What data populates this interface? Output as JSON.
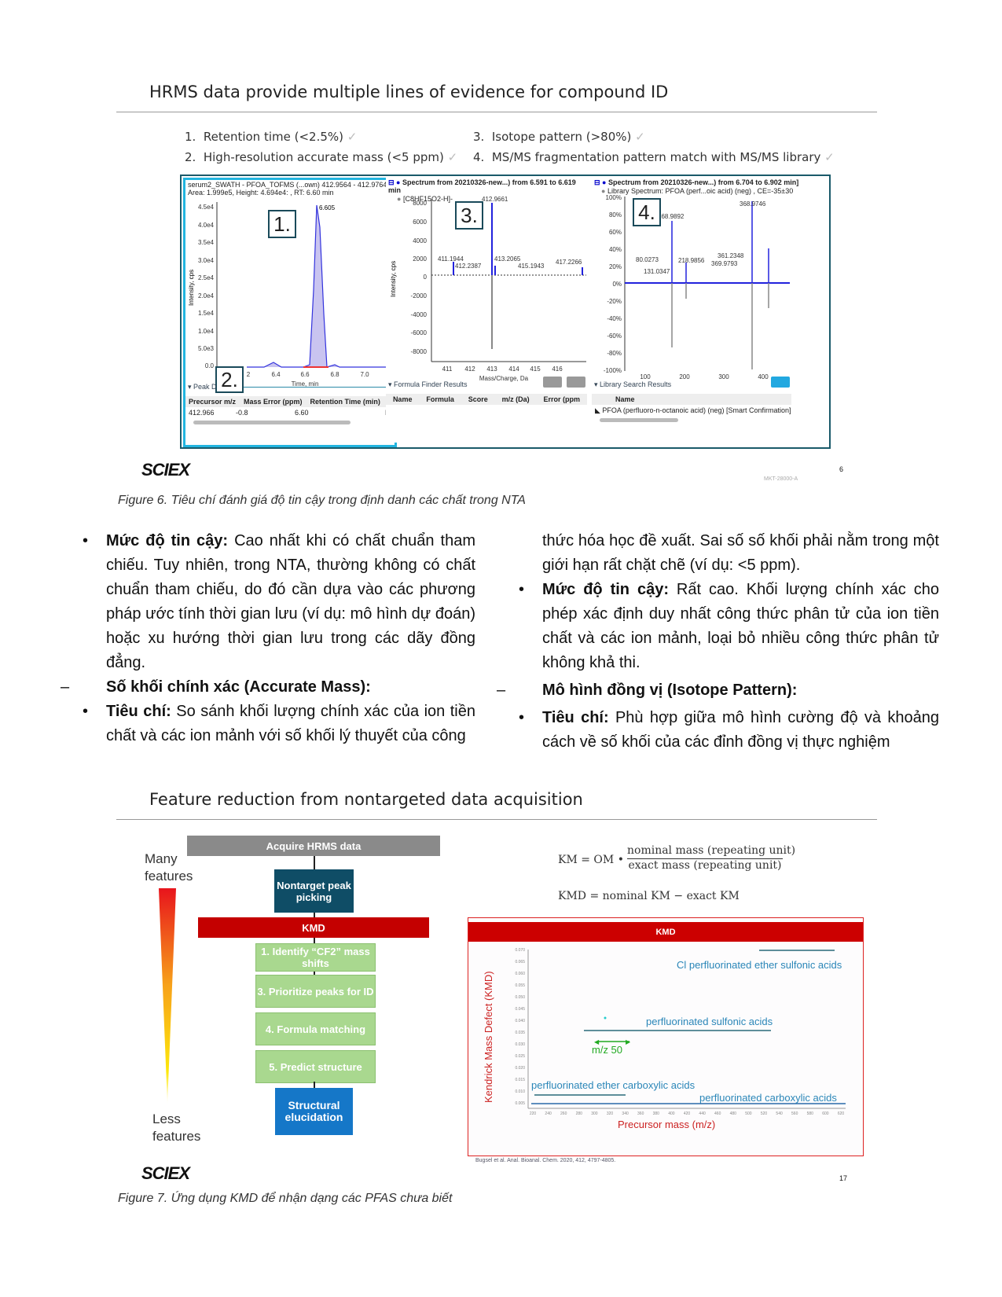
{
  "figure6": {
    "title": "HRMS data provide multiple lines of evidence for compound ID",
    "criteria": [
      {
        "num": "1.",
        "text": "Retention time (<2.5%)"
      },
      {
        "num": "2.",
        "text": "High-resolution accurate mass (<5 ppm)"
      },
      {
        "num": "3.",
        "text": "Isotope pattern (>80%)"
      },
      {
        "num": "4.",
        "text": "MS/MS fragmentation pattern match with MS/MS library"
      }
    ],
    "check": "✓",
    "panel1": {
      "header1": "serum2_SWATH - PFOA_TOFMS (...own) 412.9564 - 412.9764 -",
      "header2": "Area: 1.999e5, Height: 4.694e4: , RT: 6.60 min",
      "ylabel": "Intensity, cps",
      "yticks": [
        "4.5e4",
        "4.0e4",
        "3.5e4",
        "3.0e4",
        "2.5e4",
        "2.0e4",
        "1.5e4",
        "1.0e4",
        "5.0e3",
        "0.0"
      ],
      "xticks": [
        "2",
        "6.4",
        "6.6",
        "6.8",
        "7.0"
      ],
      "xlabel": "Time, min",
      "peak_label": "6.605",
      "badge1": "1.",
      "badge2": "2.",
      "section": "Peak D",
      "columns": [
        "Precursor m/z",
        "Mass Error (ppm)",
        "Retention Time (min)",
        "Io"
      ],
      "row": [
        "412.966",
        "-0.8",
        "6.60",
        "N."
      ]
    },
    "panel2": {
      "header1": "Spectrum from 20210326-new...) from 6.591 to 6.619 min",
      "header2": "[C8HF15O2-H]-",
      "ylabel": "Intensity, cps",
      "yticks": [
        "8000",
        "6000",
        "4000",
        "2000",
        "0",
        "-2000",
        "-4000",
        "-6000",
        "-8000"
      ],
      "xticks": [
        "411",
        "412",
        "413",
        "414",
        "415",
        "416"
      ],
      "xlabel": "Mass/Charge, Da",
      "badge": "3.",
      "peaks": [
        "412.9661",
        "411.1944",
        "412.2387",
        "413.2065",
        "415.1943",
        "417.2266"
      ],
      "section": "Formula Finder Results",
      "columns": [
        "Name",
        "Formula",
        "Score",
        "m/z (Da)",
        "Error (ppm"
      ]
    },
    "panel3": {
      "header1": "Spectrum from 20210326-new...) from 6.704 to 6.902 min]",
      "header2": "Library Spectrum: PFOA (perf...oic acid) (neg) , CE=-35±30",
      "yticks": [
        "100%",
        "80%",
        "60%",
        "40%",
        "20%",
        "0%",
        "-20%",
        "-40%",
        "-60%",
        "-80%",
        "-100%"
      ],
      "xticks": [
        "100",
        "200",
        "300",
        "400"
      ],
      "badge": "4.",
      "peaks": [
        "368.9746",
        "168.9892",
        "80.0273",
        "131.0347",
        "218.9856",
        "361.2348",
        "369.9793"
      ],
      "section": "Library Search Results",
      "columns": [
        "Name"
      ],
      "row": "PFOA (perfluoro-n-octanoic acid) (neg) [Smart Confirmation]"
    },
    "logo": "SCIEX",
    "page_num": "6",
    "code": "MKT-28000-A",
    "caption": "Figure 6. Tiêu chí đánh giá độ tin cậy trong định danh các chất trong NTA"
  },
  "body": {
    "left": {
      "b1_label": "Mức độ tin cậy:",
      "b1_text": " Cao nhất khi có chất chuẩn tham chiếu. Tuy nhiên, trong NTA, thường không có chất chuẩn tham chiếu, do đó cần dựa vào các phương pháp ước tính thời gian lưu (ví dụ: mô hình dự đoán) hoặc xu hướng thời gian lưu trong các dãy đồng đẳng.",
      "h1": "Số khối chính xác (Accurate Mass):",
      "b2_label": "Tiêu chí:",
      "b2_text": " So sánh khối lượng chính xác của ion tiền chất và các ion mảnh với số khối lý thuyết của công"
    },
    "right": {
      "cont": "thức hóa học đề xuất. Sai số số khối phải nằm trong một giới hạn rất chặt chẽ (ví dụ: <5 ppm).",
      "b1_label": "Mức độ tin cậy:",
      "b1_text": " Rất cao. Khối lượng chính xác cho phép xác định duy nhất công thức phân tử của ion tiền chất và các ion mảnh, loại bỏ nhiều công thức phân tử không khả thi.",
      "h1": "Mô hình đồng vị (Isotope Pattern):",
      "b2_label": "Tiêu chí:",
      "b2_text": " Phù hợp giữa mô hình cường độ và khoảng cách về số khối của các đỉnh đồng vị thực nghiệm"
    }
  },
  "figure7": {
    "title": "Feature reduction from nontargeted data acquisition",
    "many": "Many features",
    "less": "Less features",
    "flow": [
      "Acquire HRMS data",
      "Nontarget peak picking",
      "KMD",
      "1. Identify “CF2” mass shifts",
      "3. Prioritize peaks for ID",
      "4. Formula matching",
      "5. Predict structure",
      "Structural elucidation"
    ],
    "eq1_lhs": "KM = OM •",
    "eq1_num": "nominal mass  (repeating unit)",
    "eq1_den": "exact mass  (repeating unit)",
    "eq2": "KMD = nominal KM − exact KM",
    "kmd_header": "KMD",
    "ylabel": "Kendrick Mass Defect (KMD)",
    "xlabel": "Precursor mass (m/z)",
    "yticks": [
      "0.070",
      "0.065",
      "0.060",
      "0.055",
      "0.050",
      "0.045",
      "0.040",
      "0.035",
      "0.030",
      "0.025",
      "0.020",
      "0.015",
      "0.010",
      "0.005"
    ],
    "xticks": [
      "220",
      "240",
      "260",
      "280",
      "300",
      "320",
      "340",
      "360",
      "380",
      "400",
      "420",
      "440",
      "460",
      "480",
      "500",
      "520",
      "540",
      "560",
      "580",
      "600",
      "620"
    ],
    "series_labels": [
      "Cl perfluorinated ether sulfonic acids",
      "perfluorinated sulfonic acids",
      "perfluorinated ether carboxylic acids",
      "perfluorinated carboxylic acids"
    ],
    "mz_label": "m/z 50",
    "citation": "Bugsel et al. Anal. Bioanal. Chem. 2020, 412, 4797-4805.",
    "logo": "SCIEX",
    "page_num": "17",
    "caption": "Figure 7. Ứng dụng KMD để nhận dạng các PFAS chưa biết"
  }
}
